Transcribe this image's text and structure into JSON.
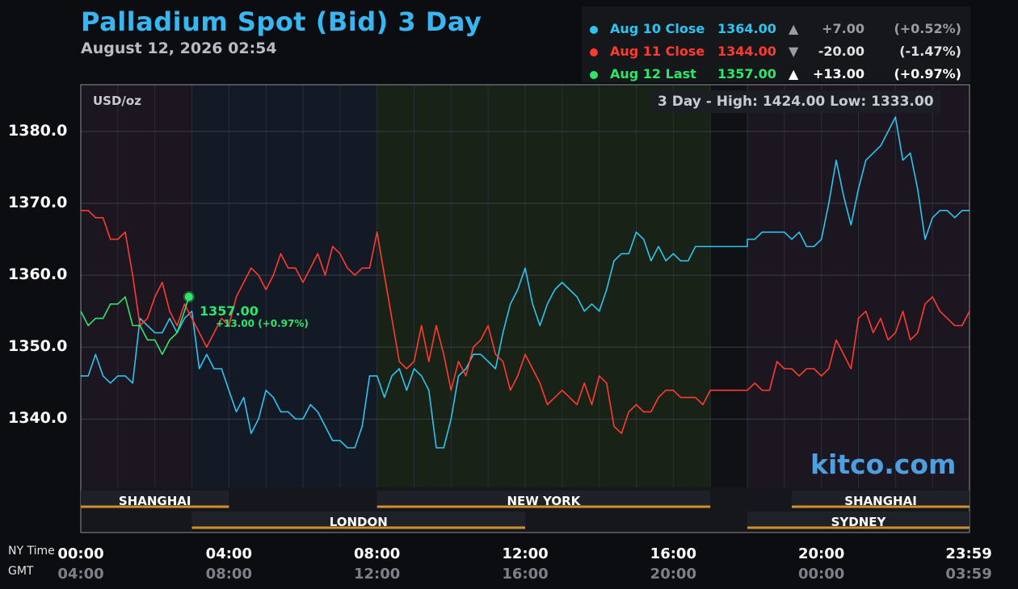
{
  "header": {
    "title": "Palladium Spot (Bid) 3 Day",
    "timestamp": "August 12, 2026 02:54"
  },
  "legend": [
    {
      "label": "Aug 10 Close",
      "value": "1364.00",
      "arrow": "▲",
      "change": "+7.00",
      "pct": "(+0.52%)",
      "color": "#2ec4f0",
      "dim": true
    },
    {
      "label": "Aug 11 Close",
      "value": "1344.00",
      "arrow": "▼",
      "change": "-20.00",
      "pct": "(-1.47%)",
      "color": "#ff3b2f",
      "dim": true
    },
    {
      "label": "Aug 12 Last",
      "value": "1357.00",
      "arrow": "▲",
      "change": "+13.00",
      "pct": "(+0.97%)",
      "color": "#2ee66a",
      "dim": false
    }
  ],
  "plot": {
    "unit": "USD/oz",
    "high_low": "3 Day - High: 1424.00  Low: 1333.00",
    "brand": "kitco.com",
    "last_label": "1357.00",
    "last_change": "+13.00 (+0.97%)",
    "axis_ny_label": "NY Time",
    "axis_gmt_label": "GMT",
    "sessions": [
      {
        "name": "SHANGHAI",
        "start": 0,
        "end": 4,
        "row": 0
      },
      {
        "name": "NEW YORK",
        "start": 8,
        "end": 17,
        "row": 0
      },
      {
        "name": "SHANGHAI",
        "start": 19.2,
        "end": 24,
        "row": 0
      },
      {
        "name": "LONDON",
        "start": 3,
        "end": 12,
        "row": 1
      },
      {
        "name": "SYDNEY",
        "start": 18,
        "end": 24,
        "row": 1
      }
    ]
  },
  "chart_data": {
    "type": "line",
    "title": "Palladium Spot (Bid) 3 Day",
    "ylabel": "USD/oz",
    "ylim": [
      1330.5,
      1386.5
    ],
    "yticks": [
      1340.0,
      1350.0,
      1360.0,
      1370.0,
      1380.0
    ],
    "ytick_labels": [
      "1340.0",
      "1350.0",
      "1360.0",
      "1370.0",
      "1380.0"
    ],
    "xlim": [
      0,
      24
    ],
    "x_ticks": [
      0,
      4,
      8,
      12,
      16,
      20,
      23.98
    ],
    "x_tick_labels_ny": [
      "00:00",
      "04:00",
      "08:00",
      "12:00",
      "16:00",
      "20:00",
      "23:59"
    ],
    "x_tick_labels_gmt": [
      "04:00",
      "08:00",
      "12:00",
      "16:00",
      "20:00",
      "00:00",
      "03:59"
    ],
    "high": 1424.0,
    "low": 1333.0,
    "series": [
      {
        "name": "Aug 10 Close",
        "color": "#2ec4f0",
        "x": [
          0,
          0.2,
          0.4,
          0.6,
          0.8,
          1.0,
          1.2,
          1.4,
          1.6,
          1.8,
          2.0,
          2.2,
          2.4,
          2.6,
          2.8,
          3.0,
          3.2,
          3.4,
          3.6,
          3.8,
          4.0,
          4.2,
          4.4,
          4.6,
          4.8,
          5.0,
          5.2,
          5.4,
          5.6,
          5.8,
          6.0,
          6.2,
          6.4,
          6.6,
          6.8,
          7.0,
          7.2,
          7.4,
          7.6,
          7.8,
          8.0,
          8.2,
          8.4,
          8.6,
          8.8,
          9.0,
          9.2,
          9.4,
          9.6,
          9.8,
          10.0,
          10.2,
          10.4,
          10.6,
          10.8,
          11.0,
          11.2,
          11.4,
          11.6,
          11.8,
          12.0,
          12.2,
          12.4,
          12.6,
          12.8,
          13.0,
          13.2,
          13.4,
          13.6,
          13.8,
          14.0,
          14.2,
          14.4,
          14.6,
          14.8,
          15.0,
          15.2,
          15.4,
          15.6,
          15.8,
          16.0,
          16.2,
          16.4,
          16.6,
          16.8,
          17.0,
          18.0,
          18.2,
          18.4,
          18.6,
          18.8,
          19.0,
          19.2,
          19.4,
          19.6,
          19.8,
          20.0,
          20.2,
          20.4,
          20.6,
          20.8,
          21.0,
          21.2,
          21.4,
          21.6,
          21.8,
          22.0,
          22.2,
          22.4,
          22.6,
          22.8,
          23.0,
          23.2,
          23.4,
          23.6,
          23.8,
          24.0
        ],
        "y": [
          1346,
          1346,
          1349,
          1346,
          1345,
          1346,
          1346,
          1345,
          1354,
          1353,
          1352,
          1352,
          1354,
          1352,
          1354,
          1355,
          1347,
          1349,
          1347,
          1347,
          1344,
          1341,
          1343,
          1338,
          1340,
          1344,
          1343,
          1341,
          1341,
          1340,
          1340,
          1342,
          1341,
          1339,
          1337,
          1337,
          1336,
          1336,
          1339,
          1346,
          1346,
          1343,
          1346,
          1347,
          1344,
          1347,
          1346,
          1344,
          1336,
          1336,
          1340,
          1346,
          1347,
          1349,
          1349,
          1348,
          1347,
          1352,
          1356,
          1358,
          1361,
          1356,
          1353,
          1356,
          1358,
          1359,
          1358,
          1357,
          1355,
          1356,
          1355,
          1358,
          1362,
          1363,
          1363,
          1366,
          1365,
          1362,
          1364,
          1362,
          1363,
          1362,
          1362,
          1364,
          1364,
          1364,
          1365,
          1365,
          1366,
          1366,
          1366,
          1366,
          1365,
          1366,
          1364,
          1364,
          1365,
          1370,
          1376,
          1371,
          1367,
          1372,
          1376,
          1377,
          1378,
          1380,
          1382,
          1376,
          1377,
          1372,
          1365,
          1368,
          1369,
          1369,
          1368,
          1369,
          1369
        ]
      },
      {
        "name": "Aug 11 Close",
        "color": "#ff3b2f",
        "x": [
          0,
          0.2,
          0.4,
          0.6,
          0.8,
          1.0,
          1.2,
          1.4,
          1.6,
          1.8,
          2.0,
          2.2,
          2.4,
          2.6,
          2.8,
          3.0,
          3.2,
          3.4,
          3.6,
          3.8,
          4.0,
          4.2,
          4.4,
          4.6,
          4.8,
          5.0,
          5.2,
          5.4,
          5.6,
          5.8,
          6.0,
          6.2,
          6.4,
          6.6,
          6.8,
          7.0,
          7.2,
          7.4,
          7.6,
          7.8,
          8.0,
          8.2,
          8.4,
          8.6,
          8.8,
          9.0,
          9.2,
          9.4,
          9.6,
          9.8,
          10.0,
          10.2,
          10.4,
          10.6,
          10.8,
          11.0,
          11.2,
          11.4,
          11.6,
          11.8,
          12.0,
          12.2,
          12.4,
          12.6,
          12.8,
          13.0,
          13.2,
          13.4,
          13.6,
          13.8,
          14.0,
          14.2,
          14.4,
          14.6,
          14.8,
          15.0,
          15.2,
          15.4,
          15.6,
          15.8,
          16.0,
          16.2,
          16.4,
          16.6,
          16.8,
          17.0,
          18.0,
          18.2,
          18.4,
          18.6,
          18.8,
          19.0,
          19.2,
          19.4,
          19.6,
          19.8,
          20.0,
          20.2,
          20.4,
          20.6,
          20.8,
          21.0,
          21.2,
          21.4,
          21.6,
          21.8,
          22.0,
          22.2,
          22.4,
          22.6,
          22.8,
          23.0,
          23.2,
          23.4,
          23.6,
          23.8,
          24.0
        ],
        "y": [
          1369,
          1369,
          1368,
          1368,
          1365,
          1365,
          1366,
          1360,
          1353,
          1354,
          1357,
          1359,
          1355,
          1353,
          1356,
          1354,
          1352,
          1350,
          1352,
          1354,
          1353,
          1357,
          1359,
          1361,
          1360,
          1358,
          1360,
          1363,
          1361,
          1361,
          1359,
          1361,
          1363,
          1360,
          1364,
          1363,
          1361,
          1360,
          1361,
          1361,
          1366,
          1360,
          1354,
          1348,
          1347,
          1348,
          1353,
          1348,
          1353,
          1349,
          1344,
          1348,
          1346,
          1350,
          1351,
          1353,
          1349,
          1348,
          1344,
          1346,
          1349,
          1347,
          1345,
          1342,
          1343,
          1344,
          1343,
          1342,
          1345,
          1342,
          1346,
          1345,
          1339,
          1338,
          1341,
          1342,
          1341,
          1341,
          1343,
          1344,
          1344,
          1343,
          1343,
          1343,
          1342,
          1344,
          1344,
          1345,
          1344,
          1344,
          1348,
          1347,
          1347,
          1346,
          1347,
          1347,
          1346,
          1347,
          1351,
          1349,
          1347,
          1354,
          1355,
          1352,
          1354,
          1351,
          1352,
          1355,
          1351,
          1352,
          1356,
          1357,
          1355,
          1354,
          1353,
          1353,
          1355
        ]
      },
      {
        "name": "Aug 12 Last",
        "color": "#2ee66a",
        "x": [
          0,
          0.2,
          0.4,
          0.6,
          0.8,
          1.0,
          1.2,
          1.4,
          1.6,
          1.8,
          2.0,
          2.2,
          2.4,
          2.6,
          2.8,
          2.92
        ],
        "y": [
          1355,
          1353,
          1354,
          1354,
          1356,
          1356,
          1357,
          1353,
          1353,
          1351,
          1351,
          1349,
          1351,
          1352,
          1355,
          1357
        ]
      }
    ]
  }
}
